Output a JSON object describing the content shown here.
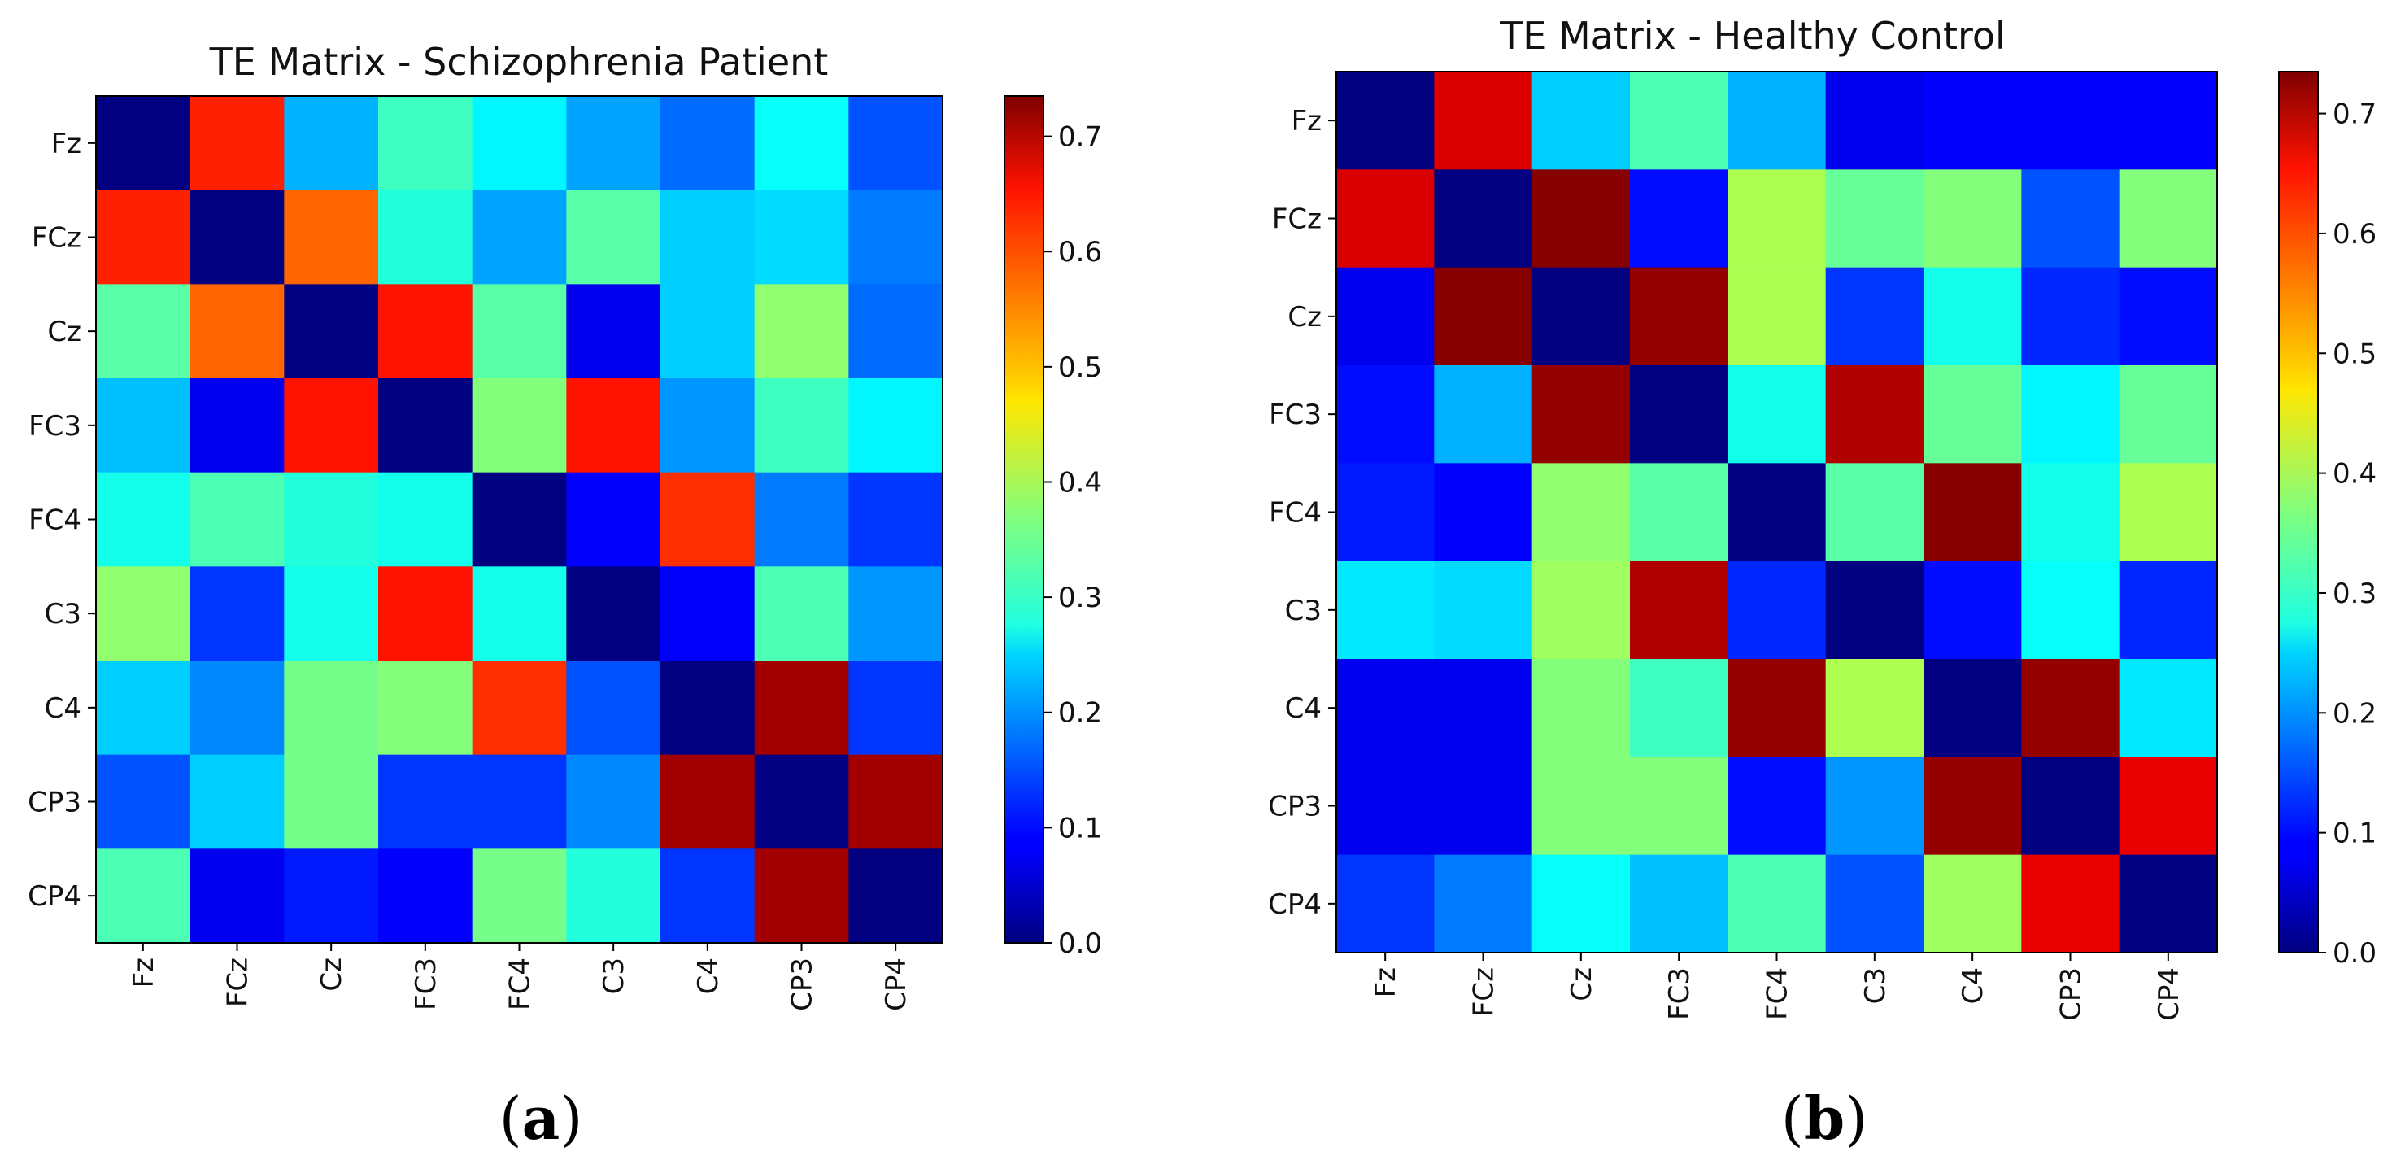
{
  "chart_data": [
    {
      "type": "heatmap",
      "title": "TE Matrix - Schizophrenia Patient",
      "subfigure_label": "a",
      "labels": [
        "Fz",
        "FCz",
        "Cz",
        "FC3",
        "FC4",
        "C3",
        "C4",
        "CP3",
        "CP4"
      ],
      "colormap": "jet",
      "vmin": 0.0,
      "vmax": 0.735,
      "colorbar_ticks": [
        "0.0",
        "0.1",
        "0.2",
        "0.3",
        "0.4",
        "0.5",
        "0.6",
        "0.7"
      ],
      "matrix": [
        [
          0.0,
          0.62,
          0.22,
          0.32,
          0.27,
          0.21,
          0.17,
          0.28,
          0.15
        ],
        [
          0.62,
          0.0,
          0.57,
          0.3,
          0.21,
          0.34,
          0.24,
          0.25,
          0.18
        ],
        [
          0.34,
          0.57,
          0.0,
          0.63,
          0.34,
          0.08,
          0.24,
          0.38,
          0.17
        ],
        [
          0.23,
          0.08,
          0.63,
          0.0,
          0.37,
          0.63,
          0.2,
          0.32,
          0.27
        ],
        [
          0.29,
          0.33,
          0.3,
          0.29,
          0.0,
          0.09,
          0.61,
          0.18,
          0.13
        ],
        [
          0.38,
          0.13,
          0.29,
          0.63,
          0.29,
          0.0,
          0.09,
          0.33,
          0.2
        ],
        [
          0.24,
          0.19,
          0.36,
          0.37,
          0.61,
          0.15,
          0.0,
          0.71,
          0.13
        ],
        [
          0.15,
          0.24,
          0.36,
          0.13,
          0.13,
          0.19,
          0.71,
          0.0,
          0.71
        ],
        [
          0.33,
          0.08,
          0.11,
          0.09,
          0.36,
          0.3,
          0.13,
          0.71,
          0.0
        ]
      ]
    },
    {
      "type": "heatmap",
      "title": "TE Matrix - Healthy Control",
      "subfigure_label": "b",
      "labels": [
        "Fz",
        "FCz",
        "Cz",
        "FC3",
        "FC4",
        "C3",
        "C4",
        "CP3",
        "CP4"
      ],
      "colormap": "jet",
      "vmin": 0.0,
      "vmax": 0.735,
      "colorbar_ticks": [
        "0.0",
        "0.1",
        "0.2",
        "0.3",
        "0.4",
        "0.5",
        "0.6",
        "0.7"
      ],
      "matrix": [
        [
          0.0,
          0.67,
          0.24,
          0.33,
          0.22,
          0.08,
          0.09,
          0.09,
          0.09
        ],
        [
          0.67,
          0.0,
          0.73,
          0.1,
          0.4,
          0.35,
          0.37,
          0.15,
          0.37
        ],
        [
          0.08,
          0.73,
          0.0,
          0.72,
          0.4,
          0.13,
          0.29,
          0.12,
          0.1
        ],
        [
          0.1,
          0.22,
          0.72,
          0.0,
          0.29,
          0.7,
          0.35,
          0.27,
          0.35
        ],
        [
          0.11,
          0.09,
          0.38,
          0.34,
          0.0,
          0.34,
          0.73,
          0.29,
          0.4
        ],
        [
          0.26,
          0.25,
          0.39,
          0.7,
          0.12,
          0.0,
          0.1,
          0.28,
          0.12
        ],
        [
          0.08,
          0.08,
          0.37,
          0.32,
          0.72,
          0.4,
          0.0,
          0.72,
          0.26
        ],
        [
          0.08,
          0.08,
          0.37,
          0.37,
          0.1,
          0.2,
          0.72,
          0.0,
          0.66
        ],
        [
          0.13,
          0.18,
          0.28,
          0.23,
          0.33,
          0.15,
          0.39,
          0.66,
          0.0
        ]
      ]
    }
  ]
}
